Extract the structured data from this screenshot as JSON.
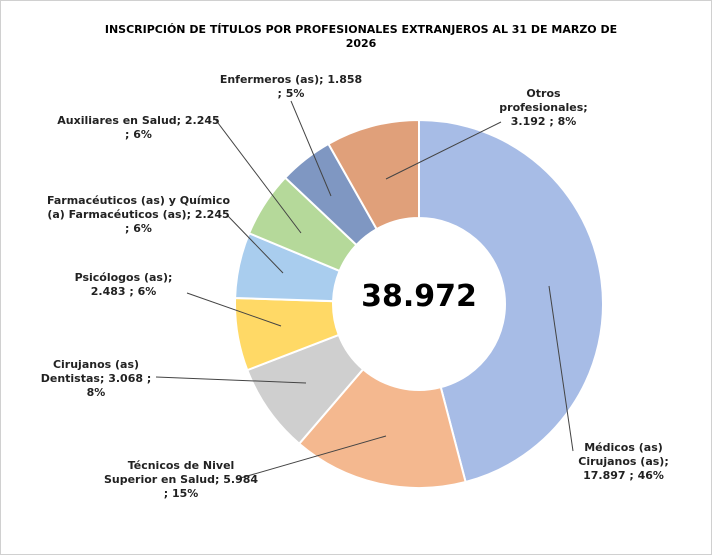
{
  "chart_data": {
    "type": "donut",
    "title": "INSCRIPCIÓN DE TÍTULOS POR PROFESIONALES EXTRANJEROS AL 31 DE MARZO DE 2026",
    "center_label": "38.972",
    "categories": [
      "Médicos (as) Cirujanos (as);",
      "Técnicos de Nivel Superior en Salud;",
      "Cirujanos (as) Dentistas;",
      "Psicólogos (as);",
      "Farmacéuticos (as) y Químico (a) Farmacéuticos (as);",
      "Auxiliares en Salud;",
      "Enfermeros (as);",
      "Otros profesionales;"
    ],
    "values": [
      17897,
      5984,
      3068,
      2483,
      2245,
      2245,
      1858,
      3192
    ],
    "value_labels": [
      "17.897 ; 46%",
      "5.984 ; 15%",
      "3.068 ; 8%",
      "2.483 ; 6%",
      "2.245 ; 6%",
      "2.245 ; 6%",
      "1.858 ; 5%",
      "3.192 ; 8%"
    ],
    "colors": [
      "#a7bce6",
      "#f4b88f",
      "#cfcfcf",
      "#ffd966",
      "#a9cdee",
      "#b5d99a",
      "#7f97c2",
      "#e0a07a"
    ]
  }
}
